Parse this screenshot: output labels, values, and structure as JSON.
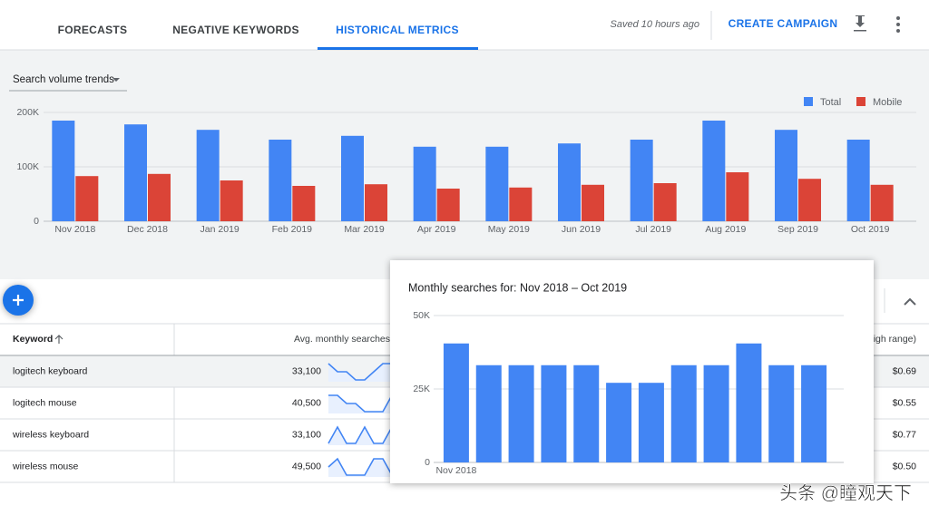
{
  "header": {
    "tabs": [
      "FORECASTS",
      "NEGATIVE KEYWORDS",
      "HISTORICAL METRICS"
    ],
    "active_tab": 2,
    "saved": "Saved 10 hours ago",
    "action": "CREATE CAMPAIGN"
  },
  "dropdown": "Search volume trends",
  "chart_data": [
    {
      "type": "bar",
      "categories": [
        "Nov 2018",
        "Dec 2018",
        "Jan 2019",
        "Feb 2019",
        "Mar 2019",
        "Apr 2019",
        "May 2019",
        "Jun 2019",
        "Jul 2019",
        "Aug 2019",
        "Sep 2019",
        "Oct 2019"
      ],
      "series": [
        {
          "name": "Total",
          "color": "#4285f4",
          "values": [
            185000,
            178000,
            168000,
            150000,
            157000,
            137000,
            137000,
            143000,
            150000,
            185000,
            168000,
            150000
          ]
        },
        {
          "name": "Mobile",
          "color": "#db4437",
          "values": [
            83000,
            87000,
            75000,
            65000,
            68000,
            60000,
            62000,
            67000,
            70000,
            90000,
            78000,
            67000
          ]
        }
      ],
      "ylim": [
        0,
        200000
      ],
      "yticks": [
        0,
        {
          "value": 100000,
          "label": "100K"
        },
        {
          "value": 200000,
          "label": "200K"
        }
      ],
      "grid": true,
      "legend": "top-right"
    },
    {
      "type": "bar",
      "title": "Monthly searches for: Nov 2018 – Oct 2019",
      "categories": [
        "Nov 2018",
        null,
        null,
        null,
        null,
        null,
        null,
        null,
        null,
        null,
        null,
        null
      ],
      "values": [
        40500,
        33100,
        33100,
        33100,
        33100,
        27100,
        27100,
        33100,
        33100,
        40500,
        33100,
        33100
      ],
      "color": "#4285f4",
      "ylim": [
        0,
        50000
      ],
      "yticks": [
        0,
        {
          "value": 25000,
          "label": "25K"
        },
        {
          "value": 50000,
          "label": "50K"
        }
      ],
      "grid": true
    }
  ],
  "table": {
    "columns": [
      "Keyword",
      "Avg. monthly searches",
      "igh range)"
    ],
    "rows": [
      [
        "logitech keyboard",
        "33,100",
        "$0.69"
      ],
      [
        "logitech mouse",
        "40,500",
        "$0.55"
      ],
      [
        "wireless keyboard",
        "33,100",
        "$0.77"
      ],
      [
        "wireless mouse",
        "49,500",
        "$0.50"
      ]
    ],
    "trends": [
      [
        9,
        6,
        6,
        3,
        3,
        6,
        9,
        9
      ],
      [
        9,
        9,
        6,
        6,
        3,
        3,
        3,
        9
      ],
      [
        3,
        9,
        3,
        3,
        9,
        3,
        3,
        9
      ],
      [
        6,
        9,
        3,
        3,
        3,
        9,
        9,
        3
      ]
    ]
  },
  "watermark": "头条 @瞳观天下"
}
